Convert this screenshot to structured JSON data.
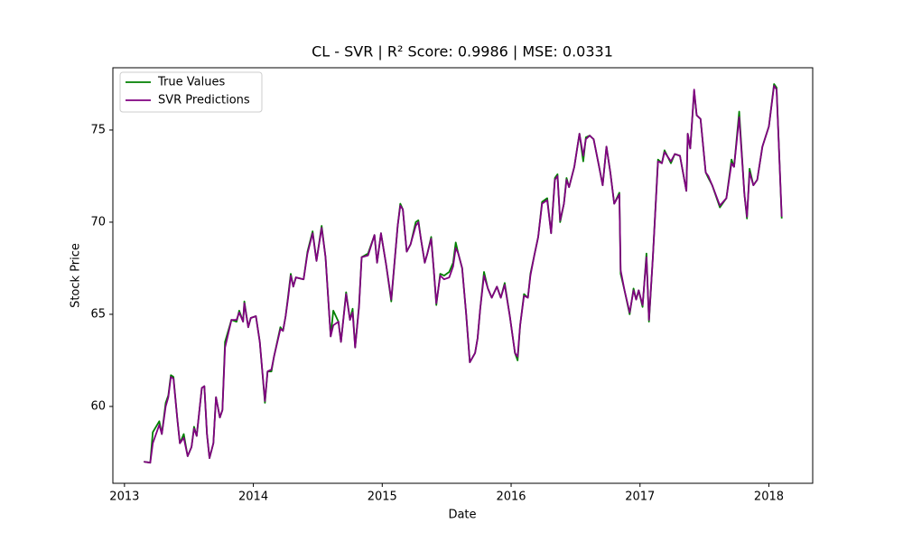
{
  "chart_data": {
    "type": "line",
    "title": "CL - SVR | R² Score: 0.9986 | MSE: 0.0331",
    "xlabel": "Date",
    "ylabel": "Stock Price",
    "x": [
      2013.15,
      2013.2,
      2013.22,
      2013.27,
      2013.29,
      2013.32,
      2013.34,
      2013.36,
      2013.38,
      2013.41,
      2013.43,
      2013.46,
      2013.49,
      2013.52,
      2013.54,
      2013.56,
      2013.6,
      2013.62,
      2013.64,
      2013.66,
      2013.69,
      2013.71,
      2013.74,
      2013.76,
      2013.78,
      2013.83,
      2013.87,
      2013.89,
      2013.92,
      2013.93,
      2013.96,
      2013.98,
      2014.02,
      2014.05,
      2014.09,
      2014.11,
      2014.14,
      2014.16,
      2014.21,
      2014.23,
      2014.25,
      2014.27,
      2014.29,
      2014.31,
      2014.33,
      2014.39,
      2014.42,
      2014.46,
      2014.49,
      2014.53,
      2014.56,
      2014.6,
      2014.62,
      2014.66,
      2014.68,
      2014.72,
      2014.75,
      2014.77,
      2014.79,
      2014.82,
      2014.84,
      2014.89,
      2014.94,
      2014.96,
      2014.99,
      2015.03,
      2015.07,
      2015.12,
      2015.14,
      2015.16,
      2015.19,
      2015.22,
      2015.26,
      2015.28,
      2015.3,
      2015.33,
      2015.35,
      2015.38,
      2015.4,
      2015.42,
      2015.45,
      2015.48,
      2015.52,
      2015.55,
      2015.57,
      2015.59,
      2015.62,
      2015.65,
      2015.68,
      2015.72,
      2015.74,
      2015.76,
      2015.79,
      2015.82,
      2015.85,
      2015.89,
      2015.92,
      2015.95,
      2015.99,
      2016.03,
      2016.05,
      2016.07,
      2016.1,
      2016.13,
      2016.15,
      2016.18,
      2016.21,
      2016.24,
      2016.28,
      2016.31,
      2016.34,
      2016.36,
      2016.38,
      2016.41,
      2016.43,
      2016.45,
      2016.49,
      2016.53,
      2016.56,
      2016.58,
      2016.61,
      2016.64,
      2016.68,
      2016.71,
      2016.74,
      2016.77,
      2016.8,
      2016.84,
      2016.85,
      2016.88,
      2016.92,
      2016.95,
      2016.97,
      2016.99,
      2017.02,
      2017.05,
      2017.07,
      2017.1,
      2017.14,
      2017.17,
      2017.19,
      2017.24,
      2017.27,
      2017.31,
      2017.36,
      2017.37,
      2017.39,
      2017.42,
      2017.44,
      2017.47,
      2017.51,
      2017.53,
      2017.56,
      2017.62,
      2017.67,
      2017.71,
      2017.73,
      2017.77,
      2017.81,
      2017.83,
      2017.85,
      2017.88,
      2017.91,
      2017.95,
      2018.0,
      2018.04,
      2018.06,
      2018.1
    ],
    "series": [
      {
        "name": "True Values",
        "color": "#008000",
        "values": [
          57.0,
          56.95,
          58.6,
          59.2,
          58.5,
          60.2,
          60.6,
          61.7,
          61.6,
          59.3,
          58.0,
          58.5,
          57.3,
          57.8,
          58.9,
          58.4,
          61.0,
          61.1,
          58.5,
          57.2,
          58.0,
          60.5,
          59.4,
          59.8,
          63.5,
          64.7,
          64.6,
          65.2,
          64.6,
          65.7,
          64.3,
          64.8,
          64.9,
          63.5,
          60.2,
          61.9,
          61.9,
          62.7,
          64.3,
          64.1,
          64.9,
          66.0,
          67.2,
          66.5,
          67.0,
          66.9,
          68.4,
          69.5,
          67.9,
          69.8,
          68.1,
          63.8,
          65.2,
          64.6,
          63.5,
          66.2,
          64.7,
          65.3,
          63.2,
          65.5,
          68.1,
          68.3,
          69.3,
          67.8,
          69.4,
          67.7,
          65.7,
          69.8,
          71.0,
          70.7,
          68.4,
          68.8,
          70.0,
          70.1,
          69.1,
          67.8,
          68.3,
          69.2,
          67.4,
          65.5,
          67.2,
          67.1,
          67.3,
          67.8,
          68.9,
          68.3,
          67.5,
          65.1,
          62.4,
          62.9,
          63.7,
          65.3,
          67.3,
          66.4,
          65.9,
          66.5,
          65.9,
          66.7,
          64.9,
          62.9,
          62.5,
          64.4,
          66.1,
          65.9,
          67.2,
          68.2,
          69.2,
          71.1,
          71.3,
          69.4,
          72.4,
          72.6,
          70.0,
          71.0,
          72.4,
          71.9,
          73.0,
          74.8,
          73.3,
          74.6,
          74.7,
          74.5,
          73.1,
          72.0,
          74.1,
          72.7,
          71.0,
          71.6,
          67.2,
          66.3,
          65.0,
          66.4,
          65.8,
          66.3,
          65.4,
          68.3,
          64.6,
          68.1,
          73.4,
          73.2,
          73.9,
          73.2,
          73.7,
          73.6,
          71.7,
          74.8,
          74.0,
          77.1,
          75.8,
          75.6,
          72.7,
          72.4,
          72.0,
          70.8,
          71.3,
          73.4,
          73.0,
          76.0,
          71.5,
          70.2,
          72.9,
          72.0,
          72.3,
          74.1,
          75.2,
          77.5,
          77.3,
          70.2
        ]
      },
      {
        "name": "SVR Predictions",
        "color": "#800080",
        "values": [
          57.0,
          56.95,
          58.0,
          59.0,
          58.5,
          60.0,
          60.5,
          61.6,
          61.5,
          59.3,
          58.0,
          58.3,
          57.3,
          57.8,
          58.8,
          58.4,
          61.0,
          61.1,
          58.5,
          57.2,
          58.0,
          60.5,
          59.4,
          59.8,
          63.2,
          64.7,
          64.7,
          65.1,
          64.6,
          65.6,
          64.3,
          64.8,
          64.9,
          63.5,
          60.3,
          61.9,
          62.0,
          62.7,
          64.2,
          64.1,
          64.9,
          65.9,
          67.1,
          66.5,
          67.0,
          66.9,
          68.3,
          69.4,
          67.9,
          69.7,
          68.1,
          63.8,
          64.4,
          64.6,
          63.5,
          66.1,
          64.7,
          65.1,
          63.2,
          65.4,
          68.1,
          68.2,
          69.3,
          67.8,
          69.4,
          67.7,
          65.8,
          69.8,
          70.9,
          70.7,
          68.4,
          68.8,
          69.8,
          70.0,
          69.1,
          67.8,
          68.3,
          69.1,
          67.4,
          65.6,
          67.1,
          66.9,
          67.0,
          67.6,
          68.6,
          68.3,
          67.5,
          65.1,
          62.4,
          62.9,
          63.7,
          65.3,
          67.1,
          66.4,
          65.9,
          66.5,
          65.9,
          66.6,
          64.9,
          62.9,
          62.7,
          64.4,
          66.0,
          65.9,
          67.1,
          68.2,
          69.2,
          71.0,
          71.2,
          69.4,
          72.3,
          72.5,
          70.1,
          71.0,
          72.3,
          71.9,
          73.0,
          74.8,
          73.6,
          74.5,
          74.7,
          74.5,
          73.1,
          72.0,
          74.1,
          72.7,
          71.0,
          71.5,
          67.4,
          66.3,
          65.1,
          66.3,
          65.8,
          66.3,
          65.5,
          68.1,
          64.7,
          68.1,
          73.3,
          73.2,
          73.8,
          73.3,
          73.7,
          73.6,
          71.7,
          74.8,
          74.0,
          77.2,
          75.8,
          75.6,
          72.7,
          72.5,
          72.0,
          70.9,
          71.3,
          73.2,
          73.0,
          75.7,
          71.5,
          70.3,
          72.7,
          72.0,
          72.3,
          74.1,
          75.2,
          77.4,
          77.2,
          70.3
        ]
      }
    ],
    "xlim": [
      2012.91,
      2018.34
    ],
    "xticks": [
      2013,
      2014,
      2015,
      2016,
      2017,
      2018
    ],
    "ylim": [
      55.83,
      78.38
    ],
    "yticks": [
      60,
      65,
      70,
      75
    ],
    "legend": "upper left",
    "grid": false
  }
}
